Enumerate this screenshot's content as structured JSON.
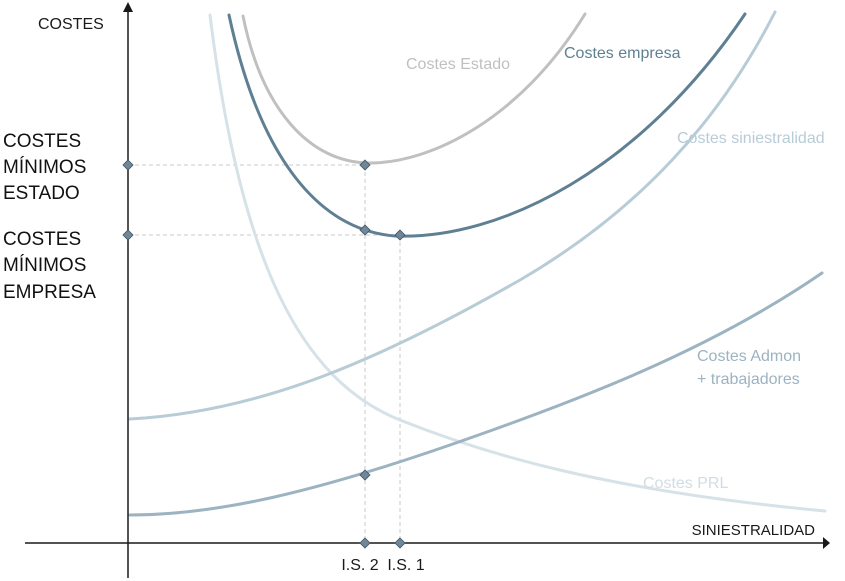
{
  "axes": {
    "y_label": "COSTES",
    "x_label": "SINIESTRALIDAD"
  },
  "levels": [
    {
      "key": "estado",
      "lines": [
        "COSTES",
        "MÍNIMOS",
        "ESTADO"
      ]
    },
    {
      "key": "empresa",
      "lines": [
        "COSTES",
        "MÍNIMOS",
        "EMPRESA"
      ]
    }
  ],
  "x_ticks": [
    "I.S. 2",
    "I.S. 1"
  ],
  "curves": [
    {
      "key": "estado",
      "label_lines": [
        "Costes Estado"
      ],
      "color": "#c0c0c0"
    },
    {
      "key": "empresa",
      "label_lines": [
        "Costes empresa"
      ],
      "color": "#5f7f92"
    },
    {
      "key": "siniestralidad",
      "label_lines": [
        "Costes siniestralidad"
      ],
      "color": "#b8ccd7"
    },
    {
      "key": "admon",
      "label_lines": [
        "Costes Admon",
        "+ trabajadores"
      ],
      "color": "#9cb3c1"
    },
    {
      "key": "prl",
      "label_lines": [
        "Costes PRL"
      ],
      "color": "#d6e2e8"
    }
  ],
  "colors": {
    "axis": "#1a1a1a",
    "guide": "#c8c8c8",
    "marker_fill": "#6f8798",
    "marker_stroke": "#3e5462"
  }
}
